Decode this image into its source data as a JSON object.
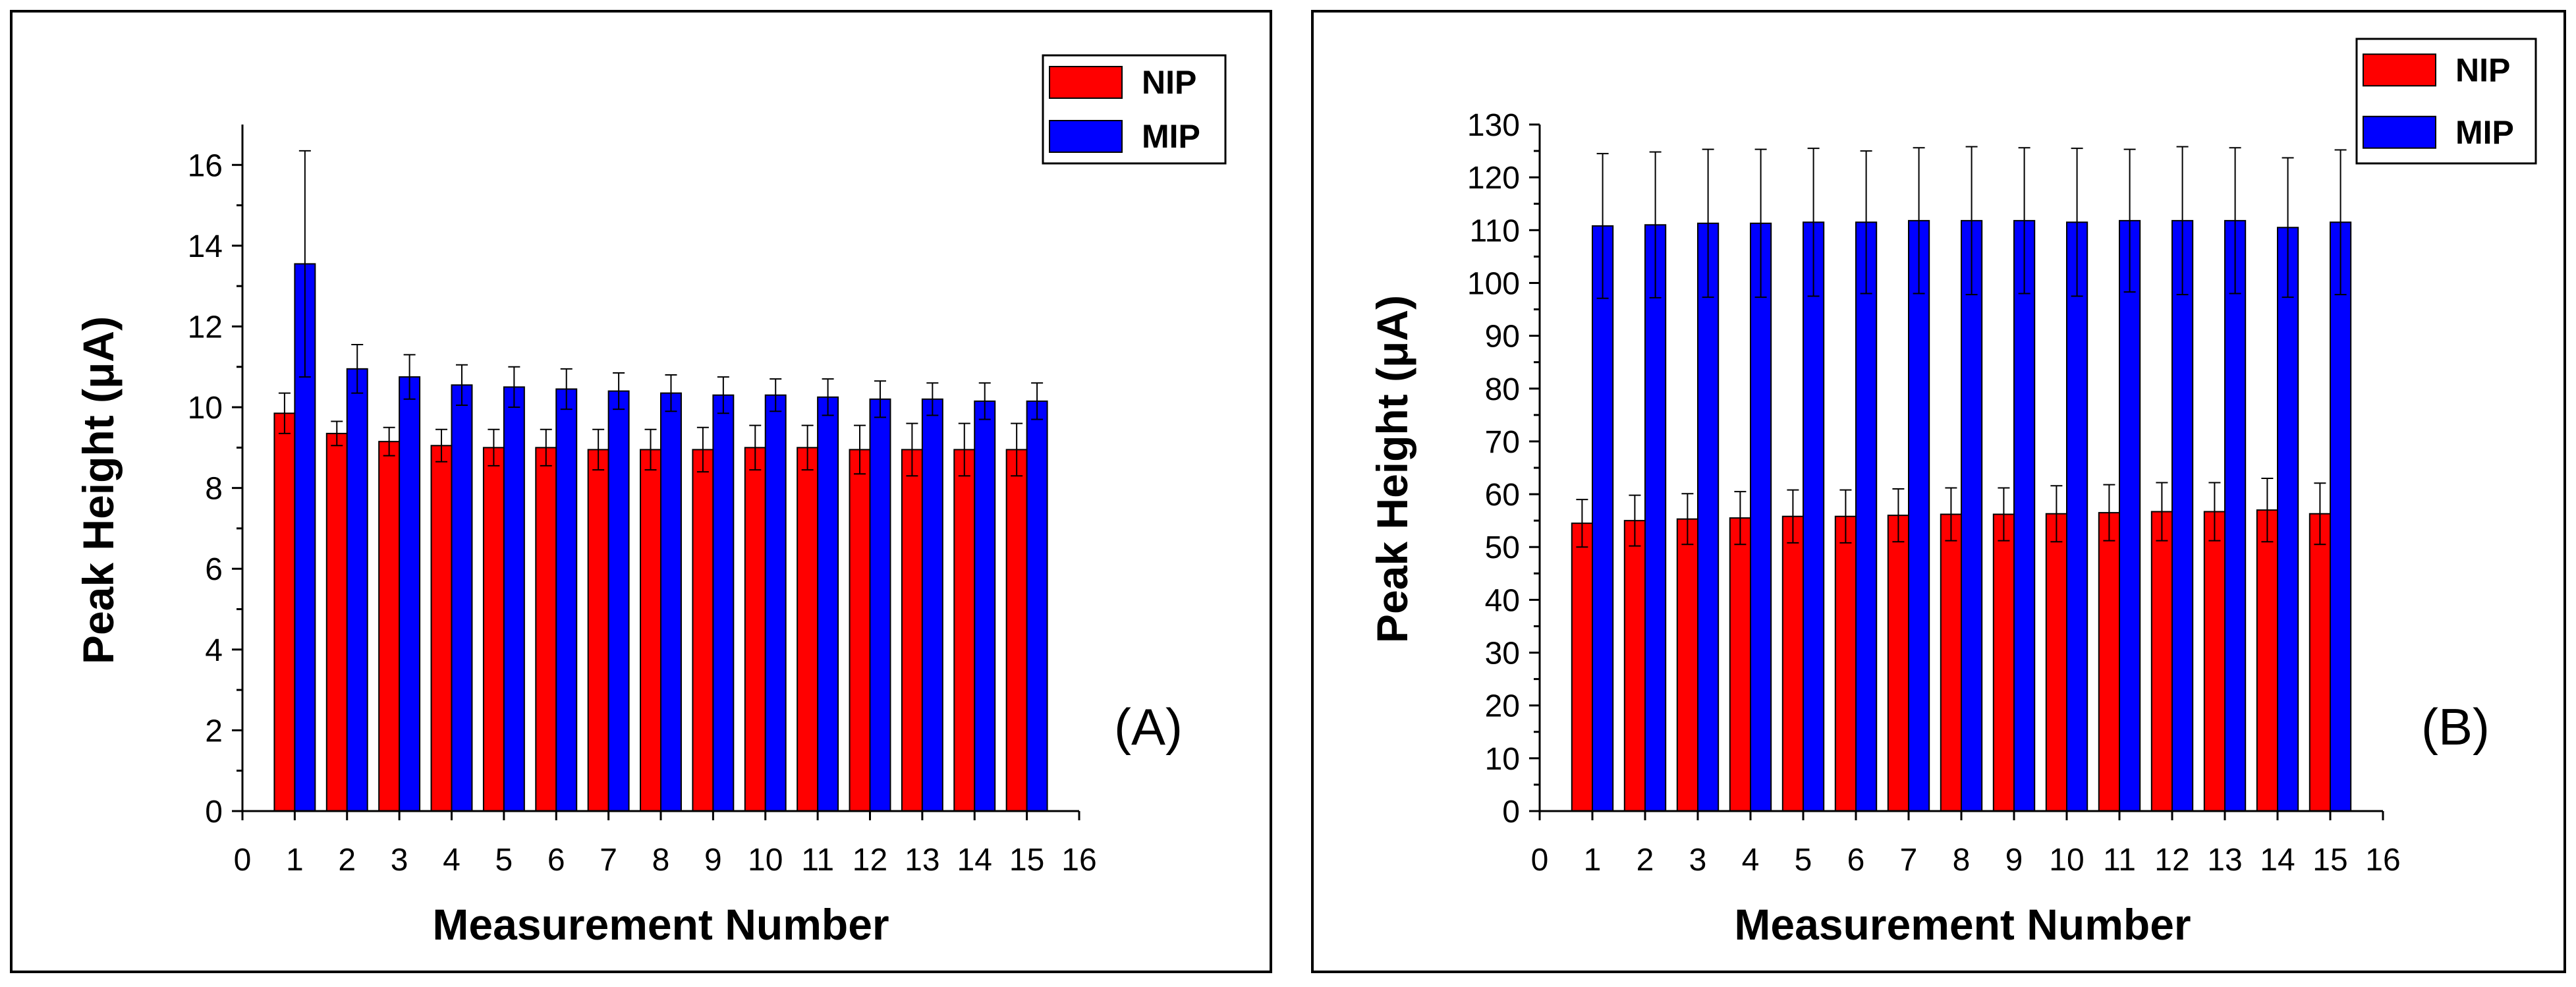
{
  "chart_data": [
    {
      "type": "bar",
      "panel_label": "(A)",
      "xlabel": "Measurement Number",
      "ylabel": "Peak Height (μA)",
      "xlim": [
        0,
        16
      ],
      "ylim": [
        0,
        17
      ],
      "xticks": [
        "0",
        "1",
        "2",
        "3",
        "4",
        "5",
        "6",
        "7",
        "8",
        "9",
        "10",
        "11",
        "12",
        "13",
        "14",
        "15",
        "16"
      ],
      "yticks": [
        "0",
        "2",
        "4",
        "6",
        "8",
        "10",
        "12",
        "14",
        "16"
      ],
      "categories": [
        1,
        2,
        3,
        4,
        5,
        6,
        7,
        8,
        9,
        10,
        11,
        12,
        13,
        14,
        15
      ],
      "legend_position": "top-right",
      "series": [
        {
          "name": "NIP",
          "color": "#ff0000",
          "values": [
            9.85,
            9.35,
            9.15,
            9.05,
            9.0,
            9.0,
            8.95,
            8.95,
            8.95,
            9.0,
            9.0,
            8.95,
            8.95,
            8.95,
            8.95
          ],
          "errors": [
            0.5,
            0.3,
            0.35,
            0.4,
            0.45,
            0.45,
            0.5,
            0.5,
            0.55,
            0.55,
            0.55,
            0.6,
            0.65,
            0.65,
            0.65
          ]
        },
        {
          "name": "MIP",
          "color": "#0000ff",
          "values": [
            13.55,
            10.95,
            10.75,
            10.55,
            10.5,
            10.45,
            10.4,
            10.35,
            10.3,
            10.3,
            10.25,
            10.2,
            10.2,
            10.15,
            10.15
          ],
          "errors": [
            2.8,
            0.6,
            0.55,
            0.5,
            0.5,
            0.5,
            0.45,
            0.45,
            0.45,
            0.4,
            0.45,
            0.45,
            0.4,
            0.45,
            0.45
          ]
        }
      ]
    },
    {
      "type": "bar",
      "panel_label": "(B)",
      "xlabel": "Measurement Number",
      "ylabel": "Peak Height (μA)",
      "xlim": [
        0,
        16
      ],
      "ylim": [
        0,
        130
      ],
      "xticks": [
        "0",
        "1",
        "2",
        "3",
        "4",
        "5",
        "6",
        "7",
        "8",
        "9",
        "10",
        "11",
        "12",
        "13",
        "14",
        "15",
        "16"
      ],
      "yticks": [
        "0",
        "10",
        "20",
        "30",
        "40",
        "50",
        "60",
        "70",
        "80",
        "90",
        "100",
        "110",
        "120",
        "130"
      ],
      "categories": [
        1,
        2,
        3,
        4,
        5,
        6,
        7,
        8,
        9,
        10,
        11,
        12,
        13,
        14,
        15
      ],
      "legend_position": "top-right",
      "series": [
        {
          "name": "NIP",
          "color": "#ff0000",
          "values": [
            54.5,
            55.0,
            55.3,
            55.5,
            55.8,
            55.8,
            56.0,
            56.2,
            56.2,
            56.3,
            56.5,
            56.7,
            56.7,
            57.0,
            56.3
          ],
          "errors": [
            4.5,
            4.8,
            4.8,
            5.0,
            5.0,
            5.0,
            5.0,
            5.0,
            5.0,
            5.3,
            5.3,
            5.5,
            5.5,
            6.0,
            5.8
          ]
        },
        {
          "name": "MIP",
          "color": "#0000ff",
          "values": [
            110.8,
            111.0,
            111.3,
            111.3,
            111.5,
            111.5,
            111.8,
            111.8,
            111.8,
            111.5,
            111.8,
            111.8,
            111.8,
            110.5,
            111.5
          ],
          "errors": [
            13.7,
            13.8,
            14.0,
            14.0,
            14.0,
            13.5,
            13.8,
            14.0,
            13.8,
            14.0,
            13.5,
            14.0,
            13.8,
            13.2,
            13.7
          ]
        }
      ]
    }
  ]
}
